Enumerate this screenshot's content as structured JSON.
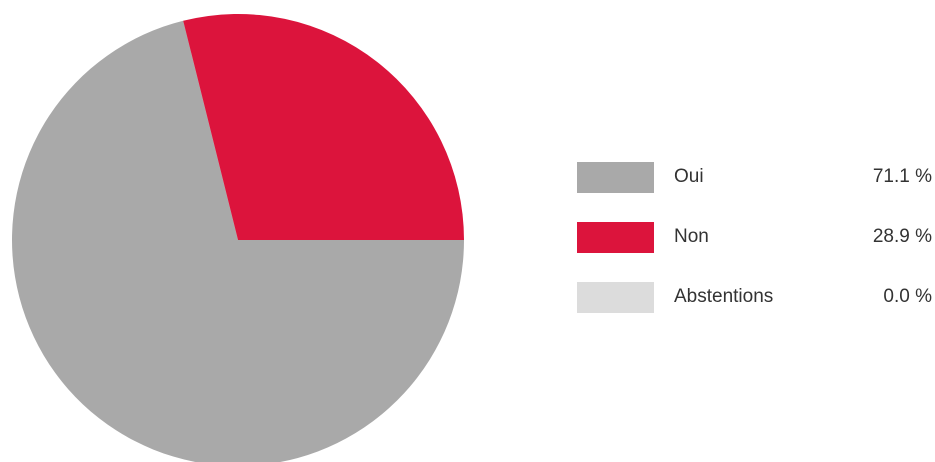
{
  "chart_data": {
    "type": "pie",
    "series": [
      {
        "name": "Oui",
        "value": 71.1,
        "value_label": "71.1 %",
        "color": "#a9a9a9"
      },
      {
        "name": "Non",
        "value": 28.9,
        "value_label": "28.9 %",
        "color": "#dc143c"
      },
      {
        "name": "Abstentions",
        "value": 0.0,
        "value_label": "0.0 %",
        "color": "#dcdcdc"
      }
    ],
    "legend_position": "right"
  }
}
